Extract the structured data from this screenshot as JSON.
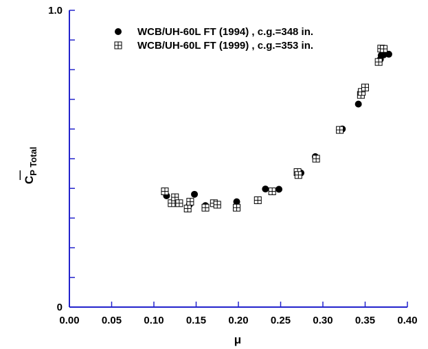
{
  "chart_data": {
    "type": "scatter",
    "xlabel": "μ",
    "ylabel": {
      "main": "C",
      "sub": "P Total",
      "bar": "—"
    },
    "xlim": [
      0.0,
      0.4
    ],
    "ylim": [
      0.0,
      1.0
    ],
    "x_ticks": [
      "0.00",
      "0.05",
      "0.10",
      "0.15",
      "0.20",
      "0.25",
      "0.30",
      "0.35",
      "0.40"
    ],
    "y_ticks": [
      {
        "value": 0.0,
        "label": "0"
      },
      {
        "value": 0.1,
        "label": ""
      },
      {
        "value": 0.2,
        "label": ""
      },
      {
        "value": 0.3,
        "label": ""
      },
      {
        "value": 0.4,
        "label": ""
      },
      {
        "value": 0.5,
        "label": ""
      },
      {
        "value": 0.6,
        "label": ""
      },
      {
        "value": 0.7,
        "label": ""
      },
      {
        "value": 0.8,
        "label": ""
      },
      {
        "value": 0.9,
        "label": ""
      },
      {
        "value": 1.0,
        "label": "1.0"
      }
    ],
    "axis_color": "#2222cc",
    "grid": false,
    "legend_position": "top-left",
    "series": [
      {
        "name": "WCB/UH-60L FT (1994) , c.g.=348 in.",
        "marker": "filled-circle",
        "points": [
          [
            0.115,
            0.375
          ],
          [
            0.142,
            0.345
          ],
          [
            0.148,
            0.38
          ],
          [
            0.161,
            0.342
          ],
          [
            0.198,
            0.355
          ],
          [
            0.232,
            0.398
          ],
          [
            0.248,
            0.397
          ],
          [
            0.274,
            0.452
          ],
          [
            0.291,
            0.507
          ],
          [
            0.323,
            0.6
          ],
          [
            0.342,
            0.684
          ],
          [
            0.368,
            0.835
          ],
          [
            0.369,
            0.848
          ],
          [
            0.372,
            0.85
          ],
          [
            0.378,
            0.852
          ]
        ]
      },
      {
        "name": "WCB/UH-60L FT (1999) , c.g.=353 in.",
        "marker": "square-cross",
        "points": [
          [
            0.113,
            0.39
          ],
          [
            0.121,
            0.35
          ],
          [
            0.125,
            0.37
          ],
          [
            0.13,
            0.35
          ],
          [
            0.14,
            0.332
          ],
          [
            0.143,
            0.355
          ],
          [
            0.161,
            0.335
          ],
          [
            0.171,
            0.35
          ],
          [
            0.175,
            0.345
          ],
          [
            0.198,
            0.335
          ],
          [
            0.223,
            0.36
          ],
          [
            0.24,
            0.39
          ],
          [
            0.27,
            0.455
          ],
          [
            0.271,
            0.445
          ],
          [
            0.292,
            0.5
          ],
          [
            0.32,
            0.597
          ],
          [
            0.345,
            0.715
          ],
          [
            0.346,
            0.725
          ],
          [
            0.35,
            0.74
          ],
          [
            0.366,
            0.826
          ],
          [
            0.369,
            0.871
          ],
          [
            0.372,
            0.87
          ]
        ]
      }
    ]
  }
}
